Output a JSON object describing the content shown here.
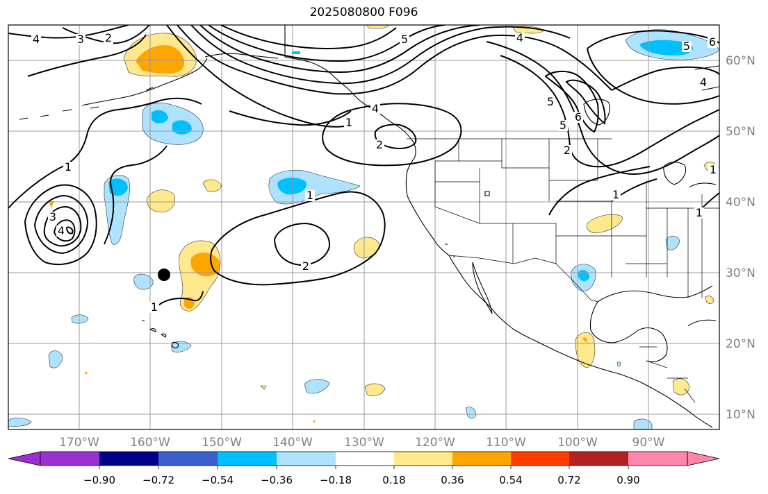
{
  "title": "2025080800 F096",
  "map": {
    "lon_labels": [
      "170°W",
      "160°W",
      "150°W",
      "140°W",
      "130°W",
      "120°W",
      "110°W",
      "100°W",
      "90°W"
    ],
    "lat_labels": [
      "60°N",
      "50°N",
      "40°N",
      "30°N",
      "20°N",
      "10°N"
    ],
    "contour_labels": [
      "4",
      "3",
      "2",
      "5",
      "6",
      "5",
      "4",
      "5",
      "6",
      "4",
      "5",
      "1",
      "2",
      "1",
      "4",
      "1",
      "2",
      "1",
      "3",
      "4",
      "1",
      "2",
      "1",
      "1"
    ],
    "colors": {
      "coast": "#000000",
      "grid": "#999999",
      "contour": "#000000",
      "marker": "#000000"
    }
  },
  "colorbar": {
    "tick_labels": [
      "−0.90",
      "−0.72",
      "−0.54",
      "−0.36",
      "−0.18",
      "0.18",
      "0.36",
      "0.54",
      "0.72",
      "0.90"
    ],
    "colors": [
      "#9b30d0",
      "#00008b",
      "#3a5fcd",
      "#00bfff",
      "#aee2ff",
      "#ffffff",
      "#ffe98c",
      "#ffa500",
      "#ff3d00",
      "#b22222",
      "#ff88aa"
    ]
  }
}
